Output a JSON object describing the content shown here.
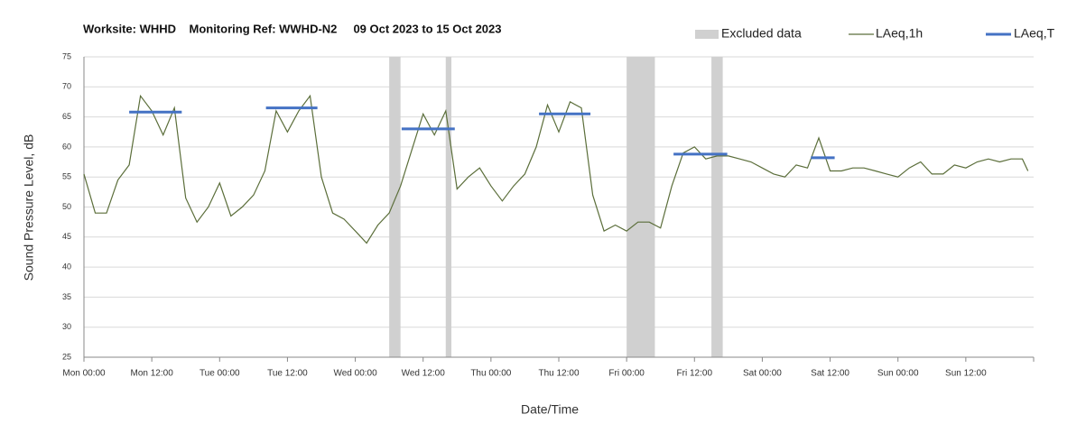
{
  "chart_data": {
    "type": "line",
    "title": "Worksite: WHHD    Monitoring Ref: WWHD-N2     09 Oct 2023 to 15 Oct 2023",
    "x_label": "Date/Time",
    "y_label": "Sound Pressure Level, dB",
    "xlim": [
      0,
      168
    ],
    "ylim": [
      25,
      75
    ],
    "yticks": [
      25,
      30,
      35,
      40,
      45,
      50,
      55,
      60,
      65,
      70,
      75
    ],
    "xticks": [
      {
        "value": 0,
        "label": "Mon 00:00"
      },
      {
        "value": 12,
        "label": "Mon 12:00"
      },
      {
        "value": 24,
        "label": "Tue 00:00"
      },
      {
        "value": 36,
        "label": "Tue 12:00"
      },
      {
        "value": 48,
        "label": "Wed 00:00"
      },
      {
        "value": 60,
        "label": "Wed 12:00"
      },
      {
        "value": 72,
        "label": "Thu 00:00"
      },
      {
        "value": 84,
        "label": "Thu 12:00"
      },
      {
        "value": 96,
        "label": "Fri 00:00"
      },
      {
        "value": 108,
        "label": "Fri 12:00"
      },
      {
        "value": 120,
        "label": "Sat 00:00"
      },
      {
        "value": 132,
        "label": "Sat 12:00"
      },
      {
        "value": 144,
        "label": "Sun 00:00"
      },
      {
        "value": 156,
        "label": "Sun 12:00"
      },
      {
        "value": 168,
        "label": null
      }
    ],
    "grid": true,
    "excluded": {
      "name": "Excluded data",
      "color": "#d0d0d0",
      "ranges": [
        [
          54,
          56
        ],
        [
          64,
          65
        ],
        [
          96,
          101
        ],
        [
          111,
          113
        ]
      ]
    },
    "series": [
      {
        "name": "LAeq,1h",
        "color": "#5b6e3a",
        "x": [
          0,
          2,
          4,
          6,
          8,
          10,
          12,
          14,
          16,
          18,
          20,
          22,
          24,
          26,
          28,
          30,
          32,
          34,
          36,
          38,
          40,
          42,
          44,
          46,
          48,
          50,
          52,
          54,
          56,
          58,
          60,
          62,
          64,
          66,
          68,
          70,
          72,
          74,
          76,
          78,
          80,
          82,
          84,
          86,
          88,
          90,
          92,
          94,
          96,
          98,
          100,
          102,
          104,
          106,
          108,
          110,
          112,
          114,
          116,
          118,
          120,
          122,
          124,
          126,
          128,
          130,
          132,
          134,
          136,
          138,
          140,
          142,
          144,
          146,
          148,
          150,
          152,
          154,
          156,
          158,
          160,
          162,
          164,
          166,
          167
        ],
        "values": [
          55.5,
          49,
          49,
          54.5,
          57,
          68.5,
          66,
          62,
          66.5,
          51.5,
          47.5,
          50,
          54,
          48.5,
          50,
          52,
          56,
          66,
          62.5,
          66,
          68.5,
          55,
          49,
          48,
          46,
          44,
          47,
          49,
          53.5,
          59.5,
          65.5,
          62,
          66,
          53,
          55,
          56.5,
          53.5,
          51,
          53.5,
          55.5,
          60,
          67,
          62.5,
          67.5,
          66.5,
          52,
          46,
          47,
          46,
          47.5,
          47.5,
          46.5,
          53.5,
          59,
          60,
          58,
          58.5,
          58.5,
          58,
          57.5,
          56.5,
          55.5,
          55,
          57,
          56.5,
          61.5,
          56,
          56,
          56.5,
          56.5,
          56,
          55.5,
          55,
          56.5,
          57.5,
          55.5,
          55.5,
          57,
          56.5,
          57.5,
          58,
          57.5,
          58,
          58,
          56
        ]
      },
      {
        "name": "LAeq,T",
        "color": "#4472c4",
        "x0": [
          8,
          32.2,
          56.2,
          80.5,
          104.3,
          128.6
        ],
        "x1": [
          17.3,
          41.3,
          65.6,
          89.6,
          113.8,
          132.8
        ],
        "values": [
          65.8,
          66.5,
          63,
          65.5,
          58.8,
          58.2
        ]
      }
    ]
  }
}
